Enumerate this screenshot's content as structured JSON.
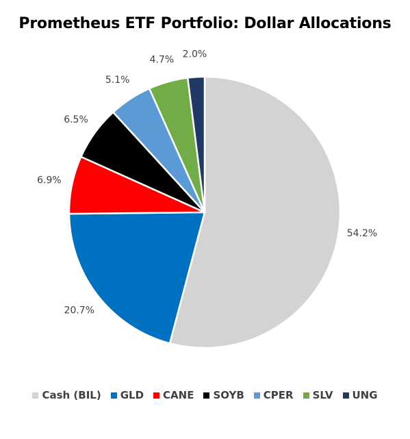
{
  "chart_data": {
    "type": "pie",
    "title": "Prometheus ETF Portfolio: Dollar Allocations",
    "categories": [
      "Cash (BIL)",
      "GLD",
      "CANE",
      "SOYB",
      "CPER",
      "SLV",
      "UNG"
    ],
    "values": [
      54.2,
      20.7,
      6.9,
      6.5,
      5.1,
      4.7,
      2.0
    ],
    "labels": [
      "54.2%",
      "20.7%",
      "6.9%",
      "6.5%",
      "5.1%",
      "4.7%",
      "2.0%"
    ],
    "colors": [
      "#d3d3d3",
      "#0070c0",
      "#ff0000",
      "#000000",
      "#5b9bd5",
      "#70ad47",
      "#203864"
    ],
    "start": "12 o'clock",
    "direction": "clockwise",
    "legend_position": "bottom"
  }
}
